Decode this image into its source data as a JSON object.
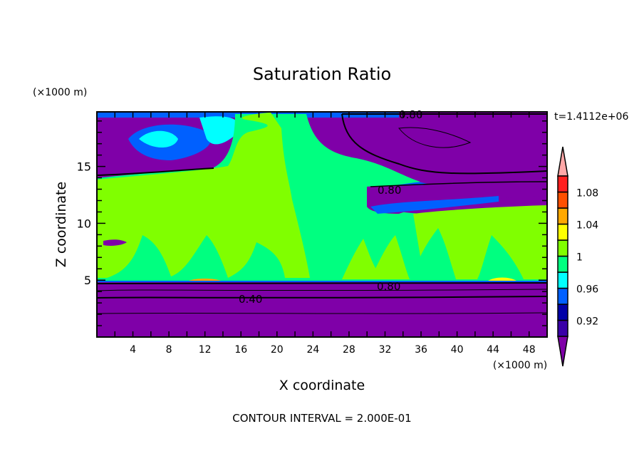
{
  "chart_data": {
    "type": "heatmap",
    "subtype": "filled-contour",
    "title": "Saturation Ratio",
    "xlabel": "X coordinate",
    "ylabel": "Z coordinate",
    "x_unit": "(×1000 m)",
    "y_unit": "(×1000 m)",
    "xlim": [
      0,
      50
    ],
    "ylim": [
      0,
      19.8
    ],
    "x_ticks": [
      4,
      8,
      12,
      16,
      20,
      24,
      28,
      32,
      36,
      40,
      44,
      48
    ],
    "y_ticks": [
      5,
      10,
      15
    ],
    "time_label": "t=1.4112e+06",
    "footer": "CONTOUR INTERVAL = 2.000E-01",
    "contour_labels": [
      "0.80",
      "0.80",
      "0.80",
      "0.40"
    ],
    "colorbar": {
      "levels": [
        0.9,
        0.92,
        0.94,
        0.96,
        0.98,
        1.0,
        1.02,
        1.04,
        1.06,
        1.08,
        1.1
      ],
      "tick_labels": [
        "1.08",
        "1.04",
        "1",
        "0.96",
        "0.92"
      ],
      "colors_bottom_to_top": [
        "#3a00a8",
        "#0000a8",
        "#0060ff",
        "#00ffff",
        "#00ff80",
        "#80ff00",
        "#ffff00",
        "#ffa800",
        "#ff5000",
        "#ff2020"
      ],
      "under_color": "#7f00a8",
      "over_color": "#ffa8a8"
    }
  }
}
